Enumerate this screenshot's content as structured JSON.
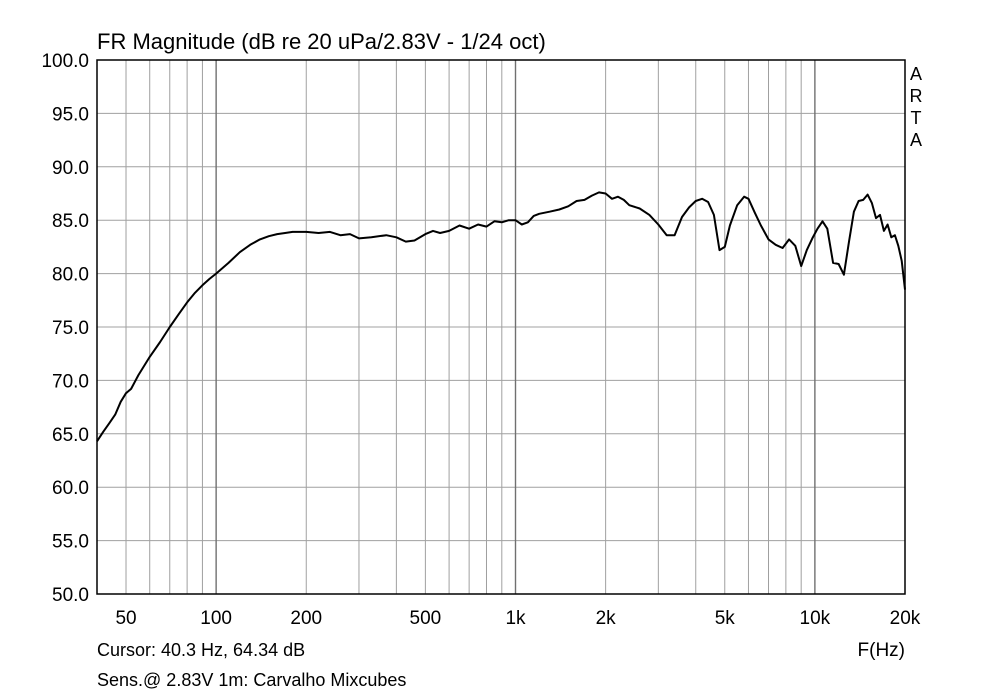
{
  "chart_data": {
    "type": "line",
    "title": "FR Magnitude (dB re 20 uPa/2.83V - 1/24 oct)",
    "xlabel": "F(Hz)",
    "x_scale": "log",
    "xlim": [
      40,
      20000
    ],
    "ylim": [
      50,
      100
    ],
    "grid": true,
    "y_ticks": [
      {
        "value": 100,
        "label": "100.0"
      },
      {
        "value": 95,
        "label": "95.0"
      },
      {
        "value": 90,
        "label": "90.0"
      },
      {
        "value": 85,
        "label": "85.0"
      },
      {
        "value": 80,
        "label": "80.0"
      },
      {
        "value": 75,
        "label": "75.0"
      },
      {
        "value": 70,
        "label": "70.0"
      },
      {
        "value": 65,
        "label": "65.0"
      },
      {
        "value": 60,
        "label": "60.0"
      },
      {
        "value": 55,
        "label": "55.0"
      },
      {
        "value": 50,
        "label": "50.0"
      }
    ],
    "x_ticks": [
      {
        "value": 50,
        "label": "50"
      },
      {
        "value": 100,
        "label": "100"
      },
      {
        "value": 200,
        "label": "200"
      },
      {
        "value": 500,
        "label": "500"
      },
      {
        "value": 1000,
        "label": "1k"
      },
      {
        "value": 2000,
        "label": "2k"
      },
      {
        "value": 5000,
        "label": "5k"
      },
      {
        "value": 10000,
        "label": "10k"
      },
      {
        "value": 20000,
        "label": "20k"
      }
    ],
    "series": [
      {
        "points": [
          [
            40,
            64.3
          ],
          [
            42,
            65.2
          ],
          [
            44,
            66.0
          ],
          [
            46,
            66.8
          ],
          [
            48,
            68.0
          ],
          [
            50,
            68.8
          ],
          [
            52,
            69.2
          ],
          [
            55,
            70.5
          ],
          [
            60,
            72.2
          ],
          [
            65,
            73.6
          ],
          [
            70,
            75.0
          ],
          [
            75,
            76.2
          ],
          [
            80,
            77.3
          ],
          [
            85,
            78.2
          ],
          [
            90,
            78.9
          ],
          [
            95,
            79.5
          ],
          [
            100,
            80.0
          ],
          [
            110,
            81.0
          ],
          [
            120,
            82.0
          ],
          [
            130,
            82.7
          ],
          [
            140,
            83.2
          ],
          [
            150,
            83.5
          ],
          [
            160,
            83.7
          ],
          [
            170,
            83.8
          ],
          [
            180,
            83.9
          ],
          [
            200,
            83.9
          ],
          [
            220,
            83.8
          ],
          [
            240,
            83.9
          ],
          [
            260,
            83.6
          ],
          [
            280,
            83.7
          ],
          [
            300,
            83.3
          ],
          [
            330,
            83.4
          ],
          [
            370,
            83.6
          ],
          [
            400,
            83.4
          ],
          [
            430,
            83.0
          ],
          [
            460,
            83.1
          ],
          [
            500,
            83.7
          ],
          [
            530,
            84.0
          ],
          [
            560,
            83.8
          ],
          [
            600,
            84.0
          ],
          [
            650,
            84.5
          ],
          [
            700,
            84.2
          ],
          [
            750,
            84.6
          ],
          [
            800,
            84.4
          ],
          [
            850,
            84.9
          ],
          [
            900,
            84.8
          ],
          [
            950,
            85.0
          ],
          [
            1000,
            85.0
          ],
          [
            1050,
            84.6
          ],
          [
            1100,
            84.8
          ],
          [
            1150,
            85.4
          ],
          [
            1200,
            85.6
          ],
          [
            1300,
            85.8
          ],
          [
            1400,
            86.0
          ],
          [
            1500,
            86.3
          ],
          [
            1600,
            86.8
          ],
          [
            1700,
            86.9
          ],
          [
            1800,
            87.3
          ],
          [
            1900,
            87.6
          ],
          [
            2000,
            87.5
          ],
          [
            2100,
            87.0
          ],
          [
            2200,
            87.2
          ],
          [
            2300,
            86.9
          ],
          [
            2400,
            86.4
          ],
          [
            2600,
            86.1
          ],
          [
            2800,
            85.5
          ],
          [
            3000,
            84.6
          ],
          [
            3200,
            83.6
          ],
          [
            3400,
            83.6
          ],
          [
            3600,
            85.3
          ],
          [
            3800,
            86.2
          ],
          [
            4000,
            86.8
          ],
          [
            4200,
            87.0
          ],
          [
            4400,
            86.7
          ],
          [
            4600,
            85.5
          ],
          [
            4800,
            82.2
          ],
          [
            5000,
            82.5
          ],
          [
            5200,
            84.5
          ],
          [
            5500,
            86.4
          ],
          [
            5800,
            87.2
          ],
          [
            6000,
            87.0
          ],
          [
            6300,
            85.7
          ],
          [
            6600,
            84.5
          ],
          [
            7000,
            83.2
          ],
          [
            7400,
            82.7
          ],
          [
            7800,
            82.4
          ],
          [
            8200,
            83.2
          ],
          [
            8600,
            82.6
          ],
          [
            9000,
            80.7
          ],
          [
            9400,
            82.2
          ],
          [
            9800,
            83.3
          ],
          [
            10200,
            84.2
          ],
          [
            10600,
            84.9
          ],
          [
            11000,
            84.2
          ],
          [
            11500,
            81.0
          ],
          [
            12000,
            80.9
          ],
          [
            12500,
            79.9
          ],
          [
            13000,
            83.0
          ],
          [
            13500,
            85.8
          ],
          [
            14000,
            86.8
          ],
          [
            14500,
            86.9
          ],
          [
            15000,
            87.4
          ],
          [
            15500,
            86.6
          ],
          [
            16000,
            85.2
          ],
          [
            16500,
            85.5
          ],
          [
            17000,
            84.0
          ],
          [
            17500,
            84.6
          ],
          [
            18000,
            83.4
          ],
          [
            18500,
            83.6
          ],
          [
            19000,
            82.6
          ],
          [
            19500,
            81.2
          ],
          [
            20000,
            78.5
          ]
        ]
      }
    ]
  },
  "footer": {
    "cursor": "Cursor: 40.3 Hz, 64.34 dB",
    "sens": "Sens.@ 2.83V 1m: Carvalho Mixcubes"
  },
  "brand": {
    "letters": [
      "A",
      "R",
      "T",
      "A"
    ]
  },
  "colors": {
    "grid": "#a0a0a0",
    "frame": "#000000",
    "trace": "#000000"
  }
}
